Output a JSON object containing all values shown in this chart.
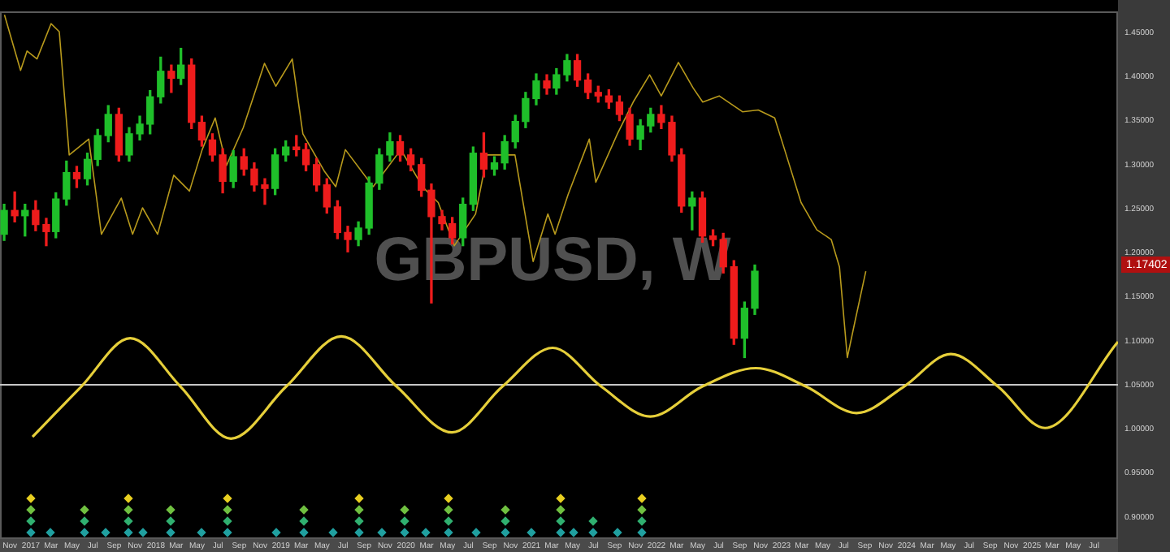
{
  "chart_data": {
    "type": "candlestick",
    "title": "GBPUSD, W",
    "x": [
      "2016-10-15",
      "2016-11-15",
      "2016-12-15",
      "2017-01-15",
      "2017-02-15",
      "2017-03-15",
      "2017-04-15",
      "2017-05-15",
      "2017-06-15",
      "2017-07-15",
      "2017-08-15",
      "2017-09-15",
      "2017-10-15",
      "2017-11-15",
      "2017-12-15",
      "2018-01-15",
      "2018-02-15",
      "2018-03-15",
      "2018-04-15",
      "2018-05-15",
      "2018-06-15",
      "2018-07-15",
      "2018-08-15",
      "2018-09-15",
      "2018-10-15",
      "2018-11-15",
      "2018-12-15",
      "2019-01-15",
      "2019-02-15",
      "2019-03-15",
      "2019-04-15",
      "2019-05-15",
      "2019-06-15",
      "2019-07-15",
      "2019-08-15",
      "2019-09-15",
      "2019-10-15",
      "2019-11-15",
      "2019-12-15",
      "2020-01-15",
      "2020-02-15",
      "2020-03-15",
      "2020-04-15",
      "2020-05-15",
      "2020-06-15",
      "2020-07-15",
      "2020-08-15",
      "2020-09-15",
      "2020-10-15",
      "2020-11-15",
      "2020-12-15",
      "2021-01-15",
      "2021-02-15",
      "2021-03-15",
      "2021-04-15",
      "2021-05-15",
      "2021-06-15",
      "2021-07-15",
      "2021-08-15",
      "2021-09-15",
      "2021-10-15",
      "2021-11-15",
      "2021-12-15",
      "2022-01-15",
      "2022-02-15",
      "2022-03-15",
      "2022-04-15",
      "2022-05-15",
      "2022-06-15",
      "2022-07-15",
      "2022-08-15",
      "2022-09-15",
      "2022-10-15"
    ],
    "ohlc": [
      [
        1.221,
        1.255,
        1.214,
        1.248
      ],
      [
        1.248,
        1.269,
        1.235,
        1.242
      ],
      [
        1.242,
        1.255,
        1.219,
        1.248
      ],
      [
        1.248,
        1.259,
        1.225,
        1.232
      ],
      [
        1.232,
        1.239,
        1.208,
        1.224
      ],
      [
        1.224,
        1.268,
        1.217,
        1.261
      ],
      [
        1.261,
        1.304,
        1.254,
        1.291
      ],
      [
        1.291,
        1.298,
        1.274,
        1.284
      ],
      [
        1.284,
        1.313,
        1.277,
        1.306
      ],
      [
        1.306,
        1.34,
        1.299,
        1.333
      ],
      [
        1.333,
        1.367,
        1.326,
        1.357
      ],
      [
        1.357,
        1.364,
        1.304,
        1.311
      ],
      [
        1.311,
        1.342,
        1.304,
        1.335
      ],
      [
        1.335,
        1.355,
        1.328,
        1.346
      ],
      [
        1.346,
        1.384,
        1.335,
        1.377
      ],
      [
        1.377,
        1.422,
        1.37,
        1.406
      ],
      [
        1.406,
        1.413,
        1.382,
        1.398
      ],
      [
        1.398,
        1.432,
        1.391,
        1.413
      ],
      [
        1.413,
        1.42,
        1.341,
        1.348
      ],
      [
        1.348,
        1.355,
        1.321,
        1.328
      ],
      [
        1.328,
        1.335,
        1.304,
        1.311
      ],
      [
        1.311,
        1.318,
        1.268,
        1.281
      ],
      [
        1.281,
        1.316,
        1.274,
        1.309
      ],
      [
        1.309,
        1.318,
        1.288,
        1.295
      ],
      [
        1.295,
        1.302,
        1.27,
        1.277
      ],
      [
        1.277,
        1.284,
        1.255,
        1.273
      ],
      [
        1.273,
        1.318,
        1.266,
        1.311
      ],
      [
        1.311,
        1.327,
        1.304,
        1.32
      ],
      [
        1.32,
        1.333,
        1.31,
        1.317
      ],
      [
        1.317,
        1.324,
        1.293,
        1.3
      ],
      [
        1.3,
        1.307,
        1.27,
        1.277
      ],
      [
        1.277,
        1.284,
        1.245,
        1.252
      ],
      [
        1.252,
        1.259,
        1.216,
        1.223
      ],
      [
        1.223,
        1.23,
        1.201,
        1.215
      ],
      [
        1.215,
        1.235,
        1.208,
        1.228
      ],
      [
        1.228,
        1.286,
        1.221,
        1.279
      ],
      [
        1.279,
        1.318,
        1.272,
        1.311
      ],
      [
        1.311,
        1.336,
        1.304,
        1.326
      ],
      [
        1.326,
        1.333,
        1.304,
        1.311
      ],
      [
        1.311,
        1.318,
        1.293,
        1.3
      ],
      [
        1.3,
        1.307,
        1.264,
        1.271
      ],
      [
        1.271,
        1.278,
        1.143,
        1.241
      ],
      [
        1.241,
        1.248,
        1.226,
        1.233
      ],
      [
        1.233,
        1.24,
        1.21,
        1.217
      ],
      [
        1.217,
        1.262,
        1.208,
        1.255
      ],
      [
        1.255,
        1.32,
        1.248,
        1.313
      ],
      [
        1.313,
        1.336,
        1.286,
        1.295
      ],
      [
        1.295,
        1.309,
        1.288,
        1.302
      ],
      [
        1.302,
        1.333,
        1.295,
        1.326
      ],
      [
        1.326,
        1.356,
        1.319,
        1.349
      ],
      [
        1.349,
        1.382,
        1.342,
        1.375
      ],
      [
        1.375,
        1.403,
        1.368,
        1.395
      ],
      [
        1.395,
        1.402,
        1.38,
        1.387
      ],
      [
        1.387,
        1.409,
        1.38,
        1.402
      ],
      [
        1.402,
        1.425,
        1.395,
        1.418
      ],
      [
        1.418,
        1.425,
        1.389,
        1.396
      ],
      [
        1.396,
        1.403,
        1.375,
        1.382
      ],
      [
        1.382,
        1.389,
        1.371,
        1.378
      ],
      [
        1.378,
        1.385,
        1.364,
        1.371
      ],
      [
        1.371,
        1.378,
        1.35,
        1.357
      ],
      [
        1.357,
        1.364,
        1.322,
        1.329
      ],
      [
        1.329,
        1.351,
        1.317,
        1.344
      ],
      [
        1.344,
        1.364,
        1.337,
        1.357
      ],
      [
        1.357,
        1.367,
        1.341,
        1.348
      ],
      [
        1.348,
        1.355,
        1.304,
        1.311
      ],
      [
        1.311,
        1.318,
        1.246,
        1.253
      ],
      [
        1.253,
        1.269,
        1.226,
        1.262
      ],
      [
        1.262,
        1.269,
        1.212,
        1.219
      ],
      [
        1.219,
        1.226,
        1.208,
        1.215
      ],
      [
        1.215,
        1.222,
        1.177,
        1.184
      ],
      [
        1.184,
        1.191,
        1.096,
        1.103
      ],
      [
        1.103,
        1.144,
        1.081,
        1.137
      ],
      [
        1.137,
        1.186,
        1.13,
        1.179
      ]
    ],
    "series": [
      {
        "type": "line",
        "color": "#b89a1c",
        "x": [
          "2016-10-16",
          "2016-12-02",
          "2016-12-21",
          "2017-01-19",
          "2017-03-01",
          "2017-03-25",
          "2017-04-23",
          "2017-06-19",
          "2017-07-26",
          "2017-09-22",
          "2017-10-25",
          "2017-11-23",
          "2018-01-06",
          "2018-02-22",
          "2018-04-09",
          "2018-05-16",
          "2018-06-23",
          "2018-07-26",
          "2018-09-13",
          "2018-11-14",
          "2018-12-17",
          "2019-02-03",
          "2019-03-06",
          "2019-05-07",
          "2019-06-10",
          "2019-07-08",
          "2019-09-27",
          "2019-12-17",
          "2020-02-18",
          "2020-04-04",
          "2020-05-21",
          "2020-07-22",
          "2020-08-25",
          "2020-11-14",
          "2021-01-06",
          "2021-02-18",
          "2021-03-11",
          "2021-04-18",
          "2021-06-19",
          "2021-07-08",
          "2021-09-09",
          "2021-10-25",
          "2021-12-12",
          "2022-01-15",
          "2022-03-06",
          "2022-04-18",
          "2022-05-16",
          "2022-07-03",
          "2022-09-09",
          "2022-10-25",
          "2022-12-12",
          "2023-01-10",
          "2023-02-27",
          "2023-04-14",
          "2023-05-26",
          "2023-06-19",
          "2023-07-12",
          "2023-08-05",
          "2023-09-04"
        ],
        "values": [
          1.47,
          1.407,
          1.429,
          1.42,
          1.46,
          1.451,
          1.311,
          1.329,
          1.221,
          1.262,
          1.221,
          1.251,
          1.221,
          1.288,
          1.27,
          1.317,
          1.353,
          1.299,
          1.342,
          1.415,
          1.389,
          1.42,
          1.335,
          1.293,
          1.275,
          1.317,
          1.275,
          1.317,
          1.275,
          1.257,
          1.208,
          1.244,
          1.311,
          1.311,
          1.19,
          1.244,
          1.221,
          1.266,
          1.329,
          1.28,
          1.335,
          1.371,
          1.402,
          1.378,
          1.416,
          1.387,
          1.371,
          1.378,
          1.36,
          1.362,
          1.353,
          1.317,
          1.257,
          1.226,
          1.215,
          1.184,
          1.081,
          1.125,
          1.179
        ]
      },
      {
        "type": "line",
        "color": "#e6cf3a",
        "x": [
          "2017-01-06",
          "2017-05-28",
          "2017-10-18",
          "2018-03-14",
          "2018-08-08",
          "2019-01-16",
          "2019-06-26",
          "2019-12-05",
          "2020-05-14",
          "2020-10-08",
          "2021-03-04",
          "2021-07-24",
          "2021-12-14",
          "2022-05-14",
          "2022-10-18",
          "2023-03-14",
          "2023-08-08",
          "2023-12-24",
          "2024-05-09",
          "2024-09-24",
          "2025-02-08",
          "2025-09-09"
        ],
        "values": [
          0.991,
          1.048,
          1.103,
          1.048,
          0.989,
          1.048,
          1.105,
          1.048,
          0.996,
          1.048,
          1.092,
          1.048,
          1.014,
          1.048,
          1.069,
          1.048,
          1.018,
          1.048,
          1.085,
          1.048,
          1.001,
          1.099
        ]
      }
    ],
    "ref_lines": [
      {
        "axis": "y",
        "value": 1.05,
        "color": "#c8c8c8"
      }
    ],
    "annotations": [
      "1.17402"
    ],
    "xlim": [
      "2016-10-03",
      "2025-09-09"
    ],
    "xticks": [
      {
        "value": "2016-11",
        "label": "Nov"
      },
      {
        "value": "2017-01",
        "label": "2017"
      },
      {
        "value": "2017-03",
        "label": "Mar"
      },
      {
        "value": "2017-05",
        "label": "May"
      },
      {
        "value": "2017-07",
        "label": "Jul"
      },
      {
        "value": "2017-09",
        "label": "Sep"
      },
      {
        "value": "2017-11",
        "label": "Nov"
      },
      {
        "value": "2018-01",
        "label": "2018"
      },
      {
        "value": "2018-03",
        "label": "Mar"
      },
      {
        "value": "2018-05",
        "label": "May"
      },
      {
        "value": "2018-07",
        "label": "Jul"
      },
      {
        "value": "2018-09",
        "label": "Sep"
      },
      {
        "value": "2018-11",
        "label": "Nov"
      },
      {
        "value": "2019-01",
        "label": "2019"
      },
      {
        "value": "2019-03",
        "label": "Mar"
      },
      {
        "value": "2019-05",
        "label": "May"
      },
      {
        "value": "2019-07",
        "label": "Jul"
      },
      {
        "value": "2019-09",
        "label": "Sep"
      },
      {
        "value": "2019-11",
        "label": "Nov"
      },
      {
        "value": "2020-01",
        "label": "2020"
      },
      {
        "value": "2020-03",
        "label": "Mar"
      },
      {
        "value": "2020-05",
        "label": "May"
      },
      {
        "value": "2020-07",
        "label": "Jul"
      },
      {
        "value": "2020-09",
        "label": "Sep"
      },
      {
        "value": "2020-11",
        "label": "Nov"
      },
      {
        "value": "2021-01",
        "label": "2021"
      },
      {
        "value": "2021-03",
        "label": "Mar"
      },
      {
        "value": "2021-05",
        "label": "May"
      },
      {
        "value": "2021-07",
        "label": "Jul"
      },
      {
        "value": "2021-09",
        "label": "Sep"
      },
      {
        "value": "2021-11",
        "label": "Nov"
      },
      {
        "value": "2022-01",
        "label": "2022"
      },
      {
        "value": "2022-03",
        "label": "Mar"
      },
      {
        "value": "2022-05",
        "label": "May"
      },
      {
        "value": "2022-07",
        "label": "Jul"
      },
      {
        "value": "2022-09",
        "label": "Sep"
      },
      {
        "value": "2022-11",
        "label": "Nov"
      },
      {
        "value": "2023-01",
        "label": "2023"
      },
      {
        "value": "2023-03",
        "label": "Mar"
      },
      {
        "value": "2023-05",
        "label": "May"
      },
      {
        "value": "2023-07",
        "label": "Jul"
      },
      {
        "value": "2023-09",
        "label": "Sep"
      },
      {
        "value": "2023-11",
        "label": "Nov"
      },
      {
        "value": "2024-01",
        "label": "2024"
      },
      {
        "value": "2024-03",
        "label": "Mar"
      },
      {
        "value": "2024-05",
        "label": "May"
      },
      {
        "value": "2024-07",
        "label": "Jul"
      },
      {
        "value": "2024-09",
        "label": "Sep"
      },
      {
        "value": "2024-11",
        "label": "Nov"
      },
      {
        "value": "2025-01",
        "label": "2025"
      },
      {
        "value": "2025-03",
        "label": "Mar"
      },
      {
        "value": "2025-05",
        "label": "May"
      },
      {
        "value": "2025-07",
        "label": "Jul"
      }
    ],
    "ylim": [
      0.875,
      1.474
    ],
    "yticks": [
      {
        "value": 0.9,
        "label": "0.90000"
      },
      {
        "value": 0.95,
        "label": "0.95000"
      },
      {
        "value": 1.0,
        "label": "1.00000"
      },
      {
        "value": 1.05,
        "label": "1.05000"
      },
      {
        "value": 1.1,
        "label": "1.10000"
      },
      {
        "value": 1.15,
        "label": "1.15000"
      },
      {
        "value": 1.2,
        "label": "1.20000"
      },
      {
        "value": 1.25,
        "label": "1.25000"
      },
      {
        "value": 1.3,
        "label": "1.30000"
      },
      {
        "value": 1.35,
        "label": "1.35000"
      },
      {
        "value": 1.4,
        "label": "1.40000"
      },
      {
        "value": 1.45,
        "label": "1.45000"
      }
    ]
  }
}
